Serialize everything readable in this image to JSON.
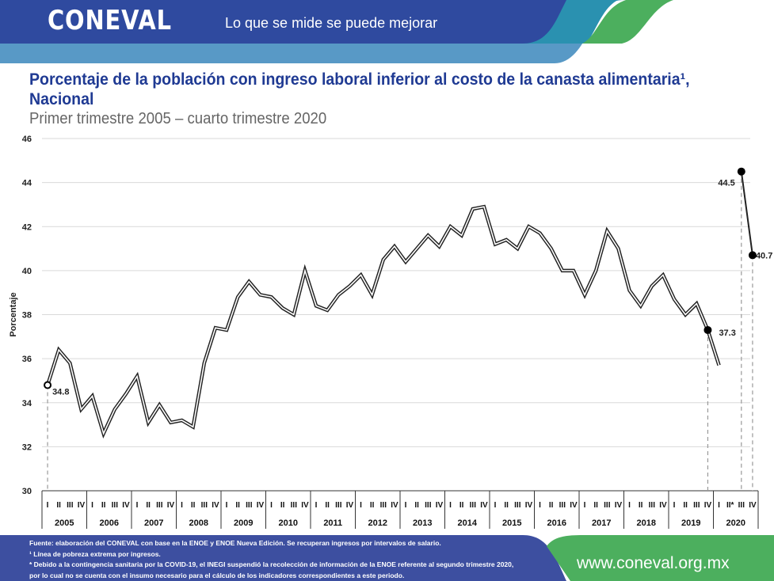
{
  "header": {
    "logo": "CONEVAL",
    "tagline": "Lo que se mide se puede mejorar",
    "colors": {
      "dark_blue": "#2f4a9f",
      "light_blue": "#5899c6",
      "teal": "#2a91b0",
      "green": "#4caf5e"
    }
  },
  "title": "Porcentaje de la población con ingreso laboral inferior al costo de la canasta alimentaria¹, Nacional",
  "subtitle": "Primer trimestre 2005 – cuarto trimestre 2020",
  "footer": {
    "source": "Fuente: elaboración del CONEVAL con base en la ENOE y ENOE Nueva Edición. Se recuperan ingresos por intervalos de salario.",
    "note1": "¹ Línea de pobreza extrema por ingresos.",
    "note2a": "* Debido a la contingencia sanitaria por la COVID-19, el INEGI suspendió la recolección de información de la ENOE referente al segundo trimestre 2020,",
    "note2b": "por lo cual no se cuenta con el insumo necesario para el cálculo de los indicadores correspondientes a este periodo.",
    "url": "www.coneval.org.mx"
  },
  "chart_data": {
    "type": "line",
    "ylabel": "Porcentaje",
    "xlabel": "",
    "ylim": [
      30,
      46
    ],
    "yticks": [
      30,
      32,
      34,
      36,
      38,
      40,
      42,
      44,
      46
    ],
    "grid": true,
    "years": [
      "2005",
      "2006",
      "2007",
      "2008",
      "2009",
      "2010",
      "2011",
      "2012",
      "2013",
      "2014",
      "2015",
      "2016",
      "2017",
      "2018",
      "2019",
      "2020"
    ],
    "quarter_labels": [
      "I",
      "II",
      "III",
      "IV"
    ],
    "quarter_labels_2020": [
      "I",
      "II*",
      "III",
      "IV"
    ],
    "series": [
      {
        "segment": "ENOE",
        "values": [
          34.8,
          36.4,
          35.8,
          33.7,
          34.3,
          32.6,
          33.7,
          34.4,
          35.2,
          33.1,
          33.9,
          33.1,
          33.2,
          32.9,
          35.8,
          37.4,
          37.3,
          38.8,
          39.5,
          38.9,
          38.8,
          38.3,
          38.0,
          40.0,
          38.4,
          38.2,
          38.9,
          39.3,
          39.8,
          38.9,
          40.5,
          41.1,
          40.4,
          41.0,
          41.6,
          41.1,
          42.0,
          41.6,
          42.8,
          42.9,
          41.2,
          41.4,
          41.0,
          42.0,
          41.7,
          41.0,
          40.0,
          40.0,
          38.9,
          40.0,
          41.8,
          41.0,
          39.1,
          38.4,
          39.3,
          39.8,
          38.7,
          38.0,
          38.5,
          37.3,
          35.7
        ]
      },
      {
        "segment": "ENOE Nueva Edición",
        "start_quarter": "2020 III",
        "values": [
          44.5,
          40.7
        ]
      }
    ],
    "annotations": [
      {
        "period": "2005 I",
        "value": 34.8,
        "label": "34.8",
        "marker": "open"
      },
      {
        "period": "2019 IV",
        "value": 37.3,
        "label": "37.3",
        "marker": "filled"
      },
      {
        "period": "2020 III",
        "value": 44.5,
        "label": "44.5",
        "marker": "filled"
      },
      {
        "period": "2020 IV",
        "value": 40.7,
        "label": "40.7",
        "marker": "filled"
      }
    ]
  }
}
